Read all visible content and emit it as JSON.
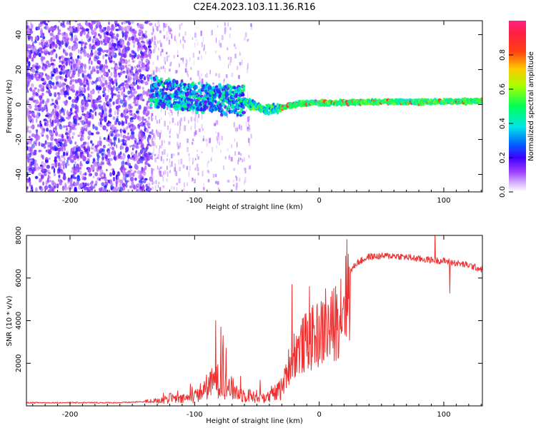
{
  "title": "C2E4.2023.103.11.36.R16",
  "chart_data": [
    {
      "type": "heatmap",
      "xlabel": "Height of straight line (km)",
      "ylabel": "Frequency (Hz)",
      "xlim": [
        -235,
        131
      ],
      "ylim": [
        -50,
        48
      ],
      "xticks": [
        -200,
        -100,
        0,
        100
      ],
      "xtick_labels": [
        "-200",
        "-100",
        "0",
        "100"
      ],
      "yticks": [
        -40,
        -20,
        0,
        20,
        40
      ],
      "ytick_labels": [
        "-40",
        "-20",
        "0",
        "20",
        "40"
      ],
      "colorbar": {
        "label": "Normalized spectral amplitude",
        "range": [
          0,
          1
        ],
        "ticks": [
          0.0,
          0.2,
          0.4,
          0.6,
          0.8
        ],
        "tick_labels": [
          "0.0",
          "0.2",
          "0.4",
          "0.6",
          "0.8"
        ],
        "colors": [
          "#ffffff",
          "#9b3cff",
          "#3c00ff",
          "#0064ff",
          "#00e6e6",
          "#00ff55",
          "#d2ff00",
          "#ffc800",
          "#ff2020",
          "#ff2080"
        ]
      },
      "ridge_center_hz": [
        {
          "x": -135,
          "y": 8
        },
        {
          "x": -120,
          "y": 6
        },
        {
          "x": -100,
          "y": 4
        },
        {
          "x": -80,
          "y": 3
        },
        {
          "x": -60,
          "y": 2
        },
        {
          "x": -50,
          "y": -1
        },
        {
          "x": -45,
          "y": -3
        },
        {
          "x": -30,
          "y": -2
        },
        {
          "x": -20,
          "y": 0
        },
        {
          "x": -5,
          "y": 1
        },
        {
          "x": 10,
          "y": 1
        },
        {
          "x": 40,
          "y": 1.5
        },
        {
          "x": 80,
          "y": 1.5
        },
        {
          "x": 131,
          "y": 2
        }
      ],
      "noise_extent_x": [
        -235,
        -135
      ],
      "sparse_noise_extent_x": [
        -135,
        -55
      ]
    },
    {
      "type": "line",
      "xlabel": "Height of straight line (km)",
      "ylabel": "SNR (10 * v/v)",
      "xlim": [
        -235,
        131
      ],
      "ylim": [
        0,
        8000
      ],
      "xticks": [
        -200,
        -100,
        0,
        100
      ],
      "xtick_labels": [
        "-200",
        "-100",
        "0",
        "100"
      ],
      "yticks": [
        2000,
        4000,
        6000,
        8000
      ],
      "ytick_labels": [
        "2000",
        "4000",
        "6000",
        "8000"
      ],
      "line_color": "#ee3030",
      "envelope": [
        {
          "x": -235,
          "y": 150
        },
        {
          "x": -200,
          "y": 150
        },
        {
          "x": -160,
          "y": 150
        },
        {
          "x": -140,
          "y": 200
        },
        {
          "x": -130,
          "y": 250
        },
        {
          "x": -120,
          "y": 350
        },
        {
          "x": -110,
          "y": 300
        },
        {
          "x": -100,
          "y": 450
        },
        {
          "x": -95,
          "y": 650
        },
        {
          "x": -90,
          "y": 900
        },
        {
          "x": -85,
          "y": 1100
        },
        {
          "x": -80,
          "y": 1200
        },
        {
          "x": -75,
          "y": 1000
        },
        {
          "x": -70,
          "y": 800
        },
        {
          "x": -65,
          "y": 600
        },
        {
          "x": -60,
          "y": 500
        },
        {
          "x": -50,
          "y": 450
        },
        {
          "x": -40,
          "y": 400
        },
        {
          "x": -30,
          "y": 800
        },
        {
          "x": -25,
          "y": 2000
        },
        {
          "x": -20,
          "y": 2700
        },
        {
          "x": -15,
          "y": 3000
        },
        {
          "x": -10,
          "y": 3300
        },
        {
          "x": 0,
          "y": 3700
        },
        {
          "x": 10,
          "y": 4000
        },
        {
          "x": 15,
          "y": 4600
        },
        {
          "x": 20,
          "y": 5600
        },
        {
          "x": 25,
          "y": 6300
        },
        {
          "x": 30,
          "y": 6700
        },
        {
          "x": 40,
          "y": 7000
        },
        {
          "x": 60,
          "y": 7050
        },
        {
          "x": 80,
          "y": 6900
        },
        {
          "x": 100,
          "y": 6800
        },
        {
          "x": 120,
          "y": 6600
        },
        {
          "x": 131,
          "y": 6400
        }
      ],
      "spikes": [
        {
          "x": -83,
          "y": 4000
        },
        {
          "x": -79,
          "y": 3700
        },
        {
          "x": -77,
          "y": 3300
        },
        {
          "x": -22,
          "y": 5700
        },
        {
          "x": -8,
          "y": 5600
        },
        {
          "x": 5,
          "y": 5500
        },
        {
          "x": 93,
          "y": 8100
        },
        {
          "x": 105,
          "y": 5300
        }
      ]
    }
  ]
}
